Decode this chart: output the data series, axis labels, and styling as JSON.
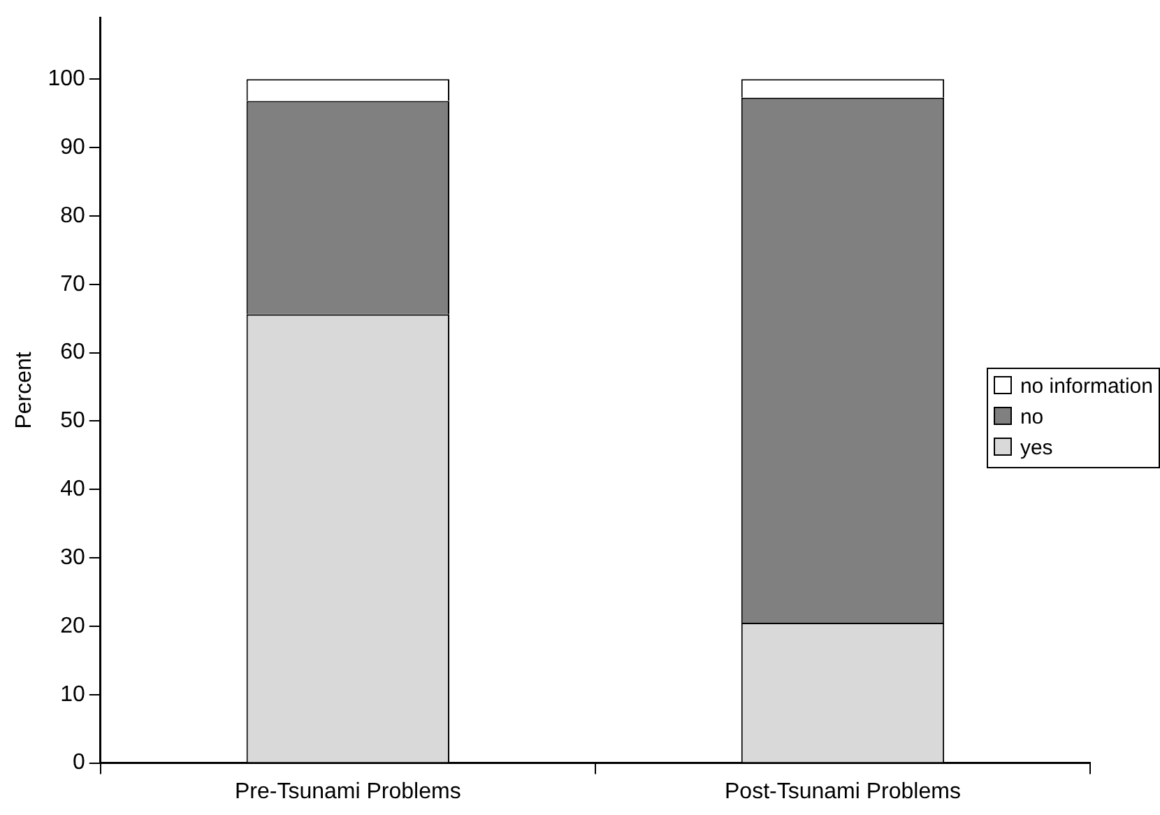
{
  "chart_data": {
    "type": "bar",
    "stacked": true,
    "ylabel": "Percent",
    "categories": [
      "Pre-Tsunami Problems",
      "Post-Tsunami Problems"
    ],
    "series": [
      {
        "name": "yes",
        "color": "#d9d9d9",
        "values": [
          65.6,
          20.5
        ]
      },
      {
        "name": "no",
        "color": "#808080",
        "values": [
          31.2,
          76.8
        ]
      },
      {
        "name": "no information",
        "color": "#ffffff",
        "values": [
          3.2,
          2.7
        ]
      }
    ],
    "ylim": [
      0,
      109
    ],
    "yticks": [
      0,
      10,
      20,
      30,
      40,
      50,
      60,
      70,
      80,
      90,
      100
    ],
    "grid": false,
    "legend": "right"
  }
}
